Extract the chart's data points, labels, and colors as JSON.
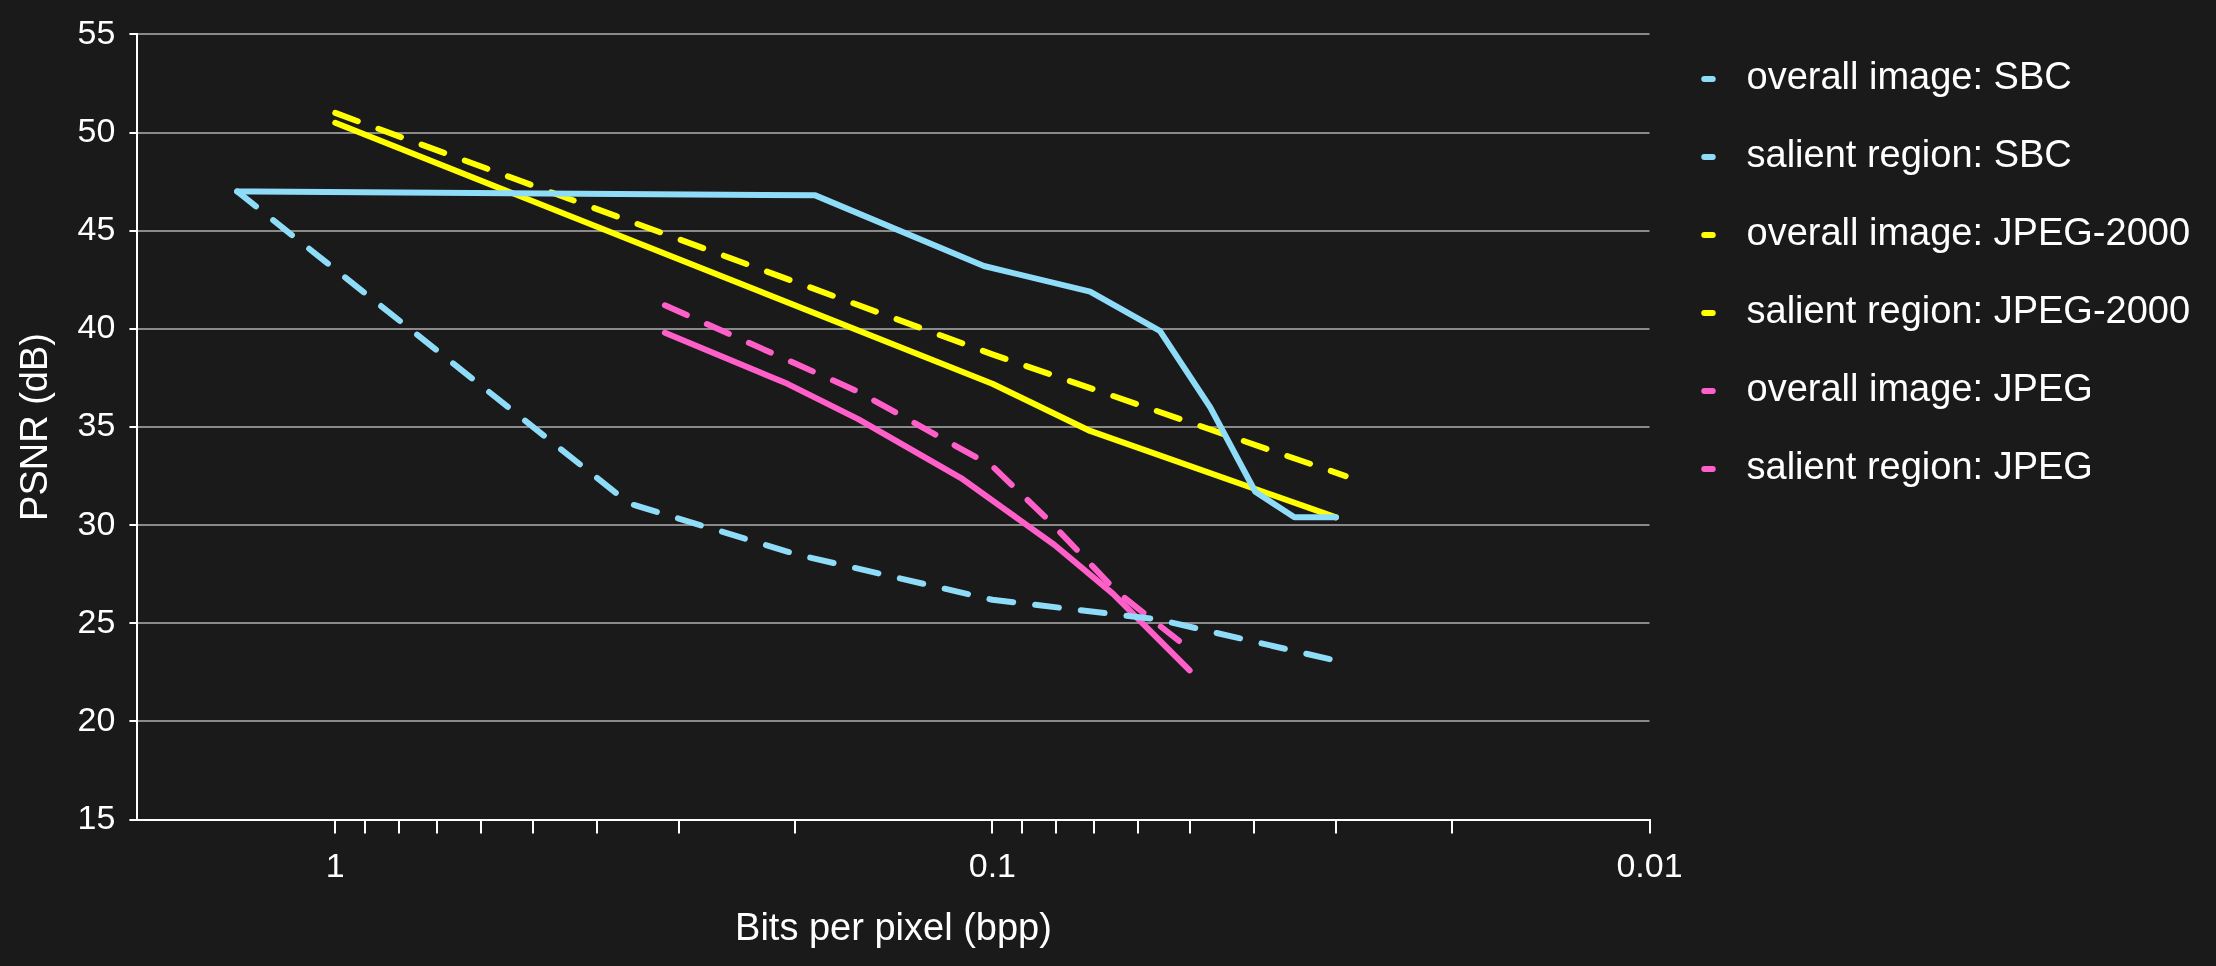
{
  "chart_data": {
    "type": "line",
    "xlabel": "Bits per pixel (bpp)",
    "ylabel": "PSNR (dB)",
    "log": "x",
    "xlim": [
      2,
      0.01
    ],
    "xticks": [
      1,
      {
        "value": 0.9,
        "label": null
      },
      {
        "value": 0.8,
        "label": null
      },
      {
        "value": 0.7,
        "label": null
      },
      {
        "value": 0.6,
        "label": null
      },
      {
        "value": 0.5,
        "label": null
      },
      {
        "value": 0.4,
        "label": null
      },
      {
        "value": 0.3,
        "label": null
      },
      {
        "value": 0.2,
        "label": null
      },
      0.1,
      {
        "value": 0.09,
        "label": null
      },
      {
        "value": 0.08,
        "label": null
      },
      {
        "value": 0.07,
        "label": null
      },
      {
        "value": 0.06,
        "label": null
      },
      {
        "value": 0.05,
        "label": null
      },
      {
        "value": 0.04,
        "label": null
      },
      {
        "value": 0.03,
        "label": null
      },
      {
        "value": 0.02,
        "label": null
      },
      0.01
    ],
    "ylim": [
      15,
      55
    ],
    "yticks": [
      15,
      20,
      25,
      30,
      35,
      40,
      45,
      50,
      55
    ],
    "grid": "y",
    "legend": "right",
    "marker": "none",
    "series": [
      {
        "name": "overall image: SBC",
        "color": "#8edcf8",
        "line_style": "dashed",
        "x": [
          1.41,
          0.357,
          0.198,
          0.1,
          0.056,
          0.03
        ],
        "values": [
          47,
          31.1,
          28.5,
          26.2,
          25.2,
          23.1
        ]
      },
      {
        "name": "salient region: SBC",
        "color": "#8edcf8",
        "line_style": "solid",
        "x": [
          1.41,
          0.186,
          0.103,
          0.071,
          0.0556,
          0.0466,
          0.0398,
          0.0347,
          0.03
        ],
        "values": [
          47,
          46.8,
          43.2,
          41.9,
          39.9,
          36,
          31.7,
          30.4,
          30.4
        ]
      },
      {
        "name": "overall image: JPEG-2000",
        "color": "#ffff00",
        "line_style": "dashed",
        "x": [
          1,
          0.1,
          0.029
        ],
        "values": [
          51,
          38.7,
          32.5
        ]
      },
      {
        "name": "salient region: JPEG-2000",
        "color": "#ffff00",
        "line_style": "solid",
        "x": [
          1,
          0.1,
          0.071,
          0.03
        ],
        "values": [
          50.5,
          37.2,
          34.8,
          30.4
        ]
      },
      {
        "name": "overall image: JPEG",
        "color": "#ff5fc8",
        "line_style": "dashed",
        "x": [
          0.315,
          0.16,
          0.1,
          0.0824,
          0.0646,
          0.052
        ],
        "values": [
          41.2,
          36.8,
          33,
          30.3,
          26.6,
          24.1
        ]
      },
      {
        "name": "salient region: JPEG",
        "color": "#ff5fc8",
        "line_style": "solid",
        "x": [
          0.315,
          0.205,
          0.16,
          0.1116,
          0.0805,
          0.0655,
          0.0501
        ],
        "values": [
          39.8,
          37.2,
          35.4,
          32.4,
          29,
          26.5,
          22.6
        ]
      }
    ]
  }
}
